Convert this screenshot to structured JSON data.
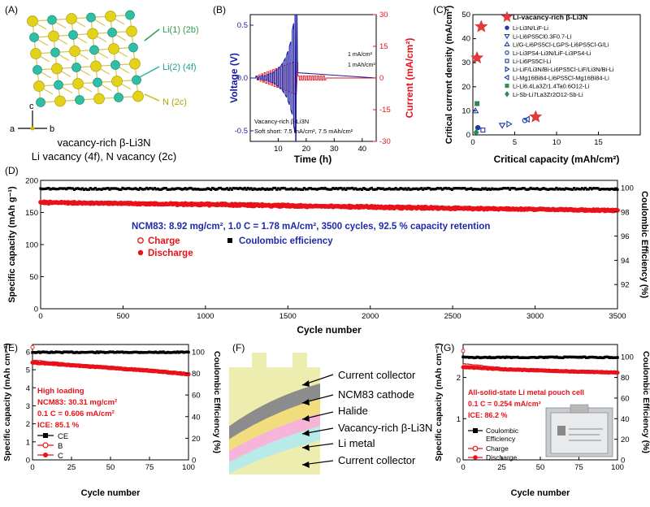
{
  "panels": {
    "A": {
      "label": "(A)",
      "site_labels": [
        "Li(1) (2b)",
        "Li(2) (4f)",
        "N (2c)"
      ],
      "axis_labels": [
        "c",
        "a",
        "b"
      ],
      "caption_lines": [
        "vacancy-rich β-Li3N",
        "Li vacancy (4f), N vacancy (2c)"
      ]
    },
    "B": {
      "label": "(B)",
      "annotation_lines": [
        "Vacancy-rich β-Li3N",
        "Soft short: 7.5 mA/cm², 7.5 mAh/cm²"
      ],
      "step_labels": [
        "1 mA/cm²",
        "1 mAh/cm²"
      ]
    },
    "C": {
      "label": "(C)"
    },
    "D": {
      "label": "(D)",
      "annotation": "NCM83: 8.92 mg/cm², 1.0 C = 1.78 mA/cm², 3500 cycles, 92.5 % capacity retention",
      "legend": [
        "Charge",
        "Discharge",
        "Coulombic efficiency"
      ]
    },
    "E": {
      "label": "(E)",
      "annotation_lines": [
        "High loading",
        "NCM83: 30.31 mg/cm²",
        "0.1 C = 0.606 mA/cm²",
        "ICE: 85.1 %"
      ],
      "legend": [
        "CE",
        "B",
        "C"
      ]
    },
    "F": {
      "label": "(F)",
      "layers": [
        "Current collector",
        "NCM83 cathode",
        "Halide",
        "Vacancy-rich β-Li3N",
        "Li metal",
        "Current collector"
      ],
      "colors": {
        "collector": "#ededb0",
        "cathode": "#8c8c8c",
        "halide": "#f1dd7c",
        "li3n": "#f6b4d8",
        "li": "#b9eaea"
      }
    },
    "G": {
      "label": "(G)",
      "annotation_lines": [
        "All-solid-state Li metal pouch cell",
        "0.1 C = 0.254 mA/cm²",
        "ICE: 86.2 %"
      ],
      "legend": [
        "Coulombic",
        "Efficiency",
        "Charge",
        "Discharge"
      ]
    }
  },
  "chart_data": [
    {
      "id": "B",
      "type": "line",
      "xlabel": "Time (h)",
      "ylabel": "Voltage (V)",
      "y2label": "Current (mA/cm²)",
      "xlim": [
        0,
        45
      ],
      "ylim": [
        -0.6,
        0.6
      ],
      "y2lim": [
        -30,
        30
      ],
      "xticks": [
        "10",
        "20",
        "30",
        "40"
      ],
      "yticks": [
        "-0.5",
        "0.0",
        "0.5"
      ],
      "y2ticks": [
        "-30",
        "-15",
        "0",
        "15",
        "30"
      ],
      "current_steps_mA_cm2": [
        1,
        1.5,
        2,
        2.5,
        3,
        3.5,
        4,
        4.5,
        5,
        5.5,
        6,
        6.5,
        7,
        7.5
      ],
      "voltage_amplitudes_V": [
        0.01,
        0.01,
        0.02,
        0.02,
        0.03,
        0.04,
        0.05,
        0.07,
        0.09,
        0.12,
        0.16,
        0.22,
        0.3,
        0.45
      ],
      "step_duration_h": 1.0
    },
    {
      "id": "C",
      "type": "scatter",
      "xlabel": "Critical capacity (mAh/cm²)",
      "ylabel": "Critical current density (mA/cm²)",
      "xlim": [
        0,
        20
      ],
      "ylim": [
        0,
        50
      ],
      "xticks": [
        "0",
        "5",
        "10",
        "15"
      ],
      "yticks": [
        "0",
        "10",
        "20",
        "30",
        "40",
        "50"
      ],
      "series": [
        {
          "name": "Li-vacancy-rich β-Li3N",
          "marker": "star",
          "color": "#e23a3a",
          "points": [
            [
              1,
              45
            ],
            [
              0.5,
              32
            ],
            [
              7.5,
              7.5
            ]
          ]
        },
        {
          "name": "Li-Li3N/LiF-Li",
          "marker": "circle",
          "color": "#1e3aa8",
          "points": [
            [
              0.6,
              3
            ]
          ]
        },
        {
          "name": "Li-Li6PS5Cl0.3F0.7-Li",
          "marker": "tri-down-open",
          "color": "#1e3aa8",
          "points": [
            [
              3.5,
              4
            ]
          ]
        },
        {
          "name": "Li/G-Li6PS5Cl-LGPS-Li6PS5Cl-G/Li",
          "marker": "tri-up-open",
          "color": "#1e3aa8",
          "points": [
            [
              0.3,
              10
            ]
          ]
        },
        {
          "name": "Li-Li3PS4-Li3N/LiF-Li3PS4-Li",
          "marker": "circle-open",
          "color": "#1e3aa8",
          "points": [
            [
              6.2,
              6
            ]
          ]
        },
        {
          "name": "Li-Li6PS5Cl-Li",
          "marker": "square-open",
          "color": "#1e3aa8",
          "points": [
            [
              1.2,
              2
            ]
          ]
        },
        {
          "name": "Li-LiF/Li3N/Bi-Li6PS5Cl-LiF/Li3N/Bi-Li",
          "marker": "tri-right-open",
          "color": "#1e3aa8",
          "points": [
            [
              4.3,
              4.5
            ]
          ]
        },
        {
          "name": "Li-Mg16Bi84-Li6PS5Cl-Mg16Bi84-Li",
          "marker": "tri-left-open",
          "color": "#1e3aa8",
          "points": [
            [
              6.5,
              6.5
            ]
          ]
        },
        {
          "name": "Li-Li6.4La3Zr1.4Ta0.6O12-Li",
          "marker": "square",
          "color": "#2e8b57",
          "points": [
            [
              0.5,
              13
            ]
          ]
        },
        {
          "name": "Li-Sb-Li7La3Zr2O12-Sb-Li",
          "marker": "diamond",
          "color": "#2e8b57",
          "points": [
            [
              0.4,
              1
            ]
          ]
        }
      ]
    },
    {
      "id": "D",
      "type": "scatter",
      "xlabel": "Cycle number",
      "ylabel": "Specific capacity (mAh g⁻¹)",
      "y2label": "Coulombic Efficiency (%)",
      "xlim": [
        0,
        3500
      ],
      "ylim": [
        0,
        200
      ],
      "y2lim": [
        90,
        100.6
      ],
      "xticks": [
        "0",
        "500",
        "1000",
        "1500",
        "2000",
        "2500",
        "3000",
        "3500"
      ],
      "yticks": [
        "0",
        "50",
        "100",
        "150",
        "200"
      ],
      "y2ticks": [
        "92",
        "94",
        "96",
        "98",
        "100"
      ],
      "series": [
        {
          "name": "Charge",
          "color": "#e8121a",
          "x": [
            0,
            500,
            1000,
            1500,
            2000,
            2500,
            3000,
            3500
          ],
          "values": [
            166,
            164,
            163,
            161,
            159,
            157,
            155,
            153
          ]
        },
        {
          "name": "Discharge",
          "color": "#e8121a",
          "x": [
            0,
            500,
            1000,
            1500,
            2000,
            2500,
            3000,
            3500
          ],
          "values": [
            165,
            164,
            162,
            160,
            158,
            156,
            155,
            153
          ]
        },
        {
          "name": "Coulombic efficiency",
          "color": "#000000",
          "x": [
            0,
            500,
            1000,
            1500,
            2000,
            2500,
            3000,
            3500
          ],
          "values": [
            99.9,
            99.9,
            99.9,
            99.9,
            99.9,
            99.9,
            99.9,
            99.9
          ]
        }
      ]
    },
    {
      "id": "E",
      "type": "scatter",
      "xlabel": "Cycle number",
      "ylabel": "Specific capacity (mAh cm⁻²)",
      "y2label": "Coulombic Efficiency (%)",
      "xlim": [
        0,
        100
      ],
      "ylim": [
        0,
        6.4
      ],
      "y2lim": [
        0,
        106.7
      ],
      "xticks": [
        "0",
        "25",
        "50",
        "75",
        "100"
      ],
      "yticks": [
        "0",
        "1",
        "2",
        "3",
        "4",
        "5",
        "6"
      ],
      "y2ticks": [
        "0",
        "20",
        "40",
        "60",
        "80",
        "100"
      ],
      "series": [
        {
          "name": "CE",
          "color": "#000000",
          "x": [
            0,
            25,
            50,
            75,
            100
          ],
          "values": [
            99.5,
            99.5,
            99.5,
            99.5,
            99.5
          ]
        },
        {
          "name": "B",
          "color": "#e8121a",
          "x": [
            0,
            25,
            50,
            75,
            100
          ],
          "values": [
            5.45,
            5.25,
            5.1,
            4.95,
            4.75
          ]
        },
        {
          "name": "C",
          "color": "#e8121a",
          "x": [
            0,
            25,
            50,
            75,
            100
          ],
          "values": [
            5.4,
            5.25,
            5.1,
            4.95,
            4.75
          ]
        }
      ]
    },
    {
      "id": "G",
      "type": "scatter",
      "xlabel": "Cycle number",
      "ylabel": "Specific capacity (mAh cm⁻²)",
      "y2label": "Coulombic Efficiency (%)",
      "xlim": [
        0,
        100
      ],
      "ylim": [
        0,
        2.8
      ],
      "y2lim": [
        0,
        112
      ],
      "xticks": [
        "0",
        "25",
        "50",
        "75",
        "100"
      ],
      "yticks": [
        "0",
        "1",
        "2"
      ],
      "y2ticks": [
        "0",
        "20",
        "40",
        "60",
        "80",
        "100"
      ],
      "series": [
        {
          "name": "Coulombic Efficiency",
          "color": "#000000",
          "x": [
            0,
            25,
            50,
            75,
            100
          ],
          "values": [
            99.5,
            99.5,
            99.5,
            99.5,
            99.5
          ]
        },
        {
          "name": "Charge",
          "color": "#e8121a",
          "x": [
            0,
            25,
            50,
            75,
            100
          ],
          "values": [
            2.3,
            2.2,
            2.17,
            2.14,
            2.12
          ]
        },
        {
          "name": "Discharge",
          "color": "#e8121a",
          "x": [
            0,
            25,
            50,
            75,
            100
          ],
          "values": [
            2.25,
            2.2,
            2.17,
            2.14,
            2.12
          ]
        }
      ]
    }
  ]
}
